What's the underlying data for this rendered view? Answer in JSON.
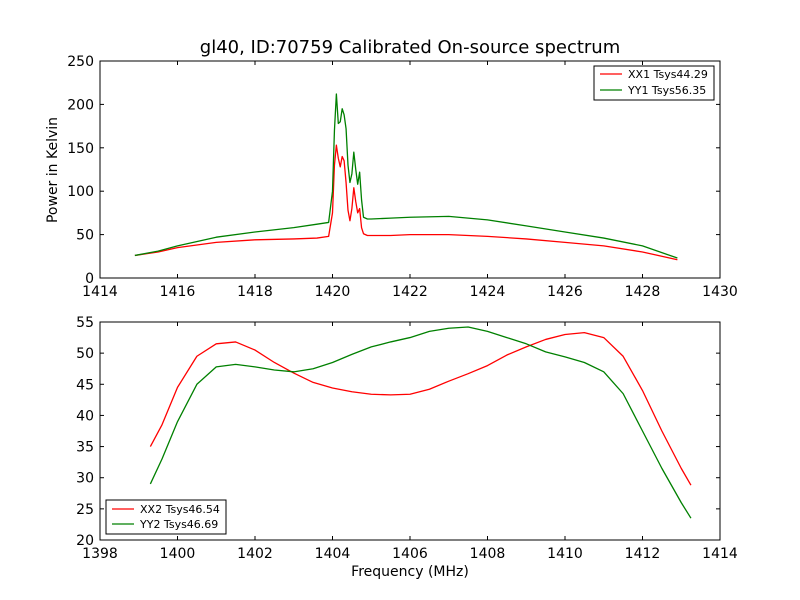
{
  "chart_data": [
    {
      "type": "line",
      "title": "gl40, ID:70759 Calibrated On-source spectrum",
      "xlabel": "",
      "ylabel": "Power in Kelvin",
      "xlim": [
        1414,
        1430
      ],
      "ylim": [
        0,
        250
      ],
      "xticks": [
        1414,
        1416,
        1418,
        1420,
        1422,
        1424,
        1426,
        1428,
        1430
      ],
      "yticks": [
        0,
        50,
        100,
        150,
        200,
        250
      ],
      "legend_position": "top-right",
      "grid": false,
      "series": [
        {
          "name": "XX1 Tsys44.29",
          "color": "#ff0000",
          "x": [
            1414.9,
            1415.5,
            1416.0,
            1417.0,
            1418.0,
            1419.0,
            1419.6,
            1419.9,
            1420.0,
            1420.05,
            1420.1,
            1420.15,
            1420.2,
            1420.25,
            1420.3,
            1420.35,
            1420.4,
            1420.45,
            1420.5,
            1420.55,
            1420.6,
            1420.65,
            1420.7,
            1420.75,
            1420.8,
            1420.9,
            1421.0,
            1421.5,
            1422.0,
            1423.0,
            1424.0,
            1425.0,
            1426.0,
            1427.0,
            1428.0,
            1428.9
          ],
          "y": [
            26,
            30,
            35,
            41,
            44,
            45,
            46,
            48,
            75,
            130,
            153,
            138,
            128,
            140,
            135,
            110,
            78,
            66,
            80,
            104,
            88,
            75,
            80,
            58,
            51,
            49,
            49,
            49,
            50,
            50,
            48,
            45,
            41,
            37,
            30,
            21
          ]
        },
        {
          "name": "YY1 Tsys56.35",
          "color": "#008000",
          "x": [
            1414.9,
            1415.5,
            1416.0,
            1417.0,
            1418.0,
            1419.0,
            1419.6,
            1419.9,
            1420.0,
            1420.05,
            1420.1,
            1420.15,
            1420.2,
            1420.25,
            1420.3,
            1420.35,
            1420.4,
            1420.45,
            1420.5,
            1420.55,
            1420.6,
            1420.65,
            1420.7,
            1420.75,
            1420.8,
            1420.9,
            1421.0,
            1421.5,
            1422.0,
            1423.0,
            1424.0,
            1425.0,
            1426.0,
            1427.0,
            1428.0,
            1428.9
          ],
          "y": [
            26,
            31,
            37,
            47,
            53,
            58,
            62,
            64,
            100,
            170,
            212,
            178,
            180,
            195,
            188,
            172,
            130,
            110,
            120,
            145,
            125,
            108,
            122,
            90,
            70,
            68,
            68,
            69,
            70,
            71,
            67,
            60,
            53,
            46,
            37,
            23
          ]
        }
      ]
    },
    {
      "type": "line",
      "title": "",
      "xlabel": "Frequency (MHz)",
      "ylabel": "",
      "xlim": [
        1398,
        1414
      ],
      "ylim": [
        20,
        55
      ],
      "xticks": [
        1398,
        1400,
        1402,
        1404,
        1406,
        1408,
        1410,
        1412,
        1414
      ],
      "yticks": [
        20,
        25,
        30,
        35,
        40,
        45,
        50,
        55
      ],
      "legend_position": "bottom-left",
      "grid": false,
      "series": [
        {
          "name": "XX2 Tsys46.54",
          "color": "#ff0000",
          "x": [
            1399.3,
            1399.6,
            1400.0,
            1400.5,
            1401.0,
            1401.5,
            1402.0,
            1402.5,
            1403.0,
            1403.5,
            1404.0,
            1404.5,
            1405.0,
            1405.5,
            1406.0,
            1406.5,
            1407.0,
            1407.5,
            1408.0,
            1408.5,
            1409.0,
            1409.5,
            1410.0,
            1410.5,
            1411.0,
            1411.5,
            1412.0,
            1412.5,
            1413.0,
            1413.25
          ],
          "y": [
            35,
            38.5,
            44.5,
            49.5,
            51.5,
            51.8,
            50.5,
            48.5,
            46.8,
            45.3,
            44.4,
            43.8,
            43.4,
            43.3,
            43.4,
            44.2,
            45.5,
            46.7,
            48,
            49.7,
            51,
            52.2,
            53,
            53.3,
            52.5,
            49.5,
            44,
            37.5,
            31.5,
            28.8
          ]
        },
        {
          "name": "YY2 Tsys46.69",
          "color": "#008000",
          "x": [
            1399.3,
            1399.6,
            1400.0,
            1400.5,
            1401.0,
            1401.5,
            1402.0,
            1402.5,
            1403.0,
            1403.5,
            1404.0,
            1404.5,
            1405.0,
            1405.5,
            1406.0,
            1406.5,
            1407.0,
            1407.5,
            1408.0,
            1408.5,
            1409.0,
            1409.5,
            1410.0,
            1410.5,
            1411.0,
            1411.5,
            1412.0,
            1412.5,
            1413.0,
            1413.25
          ],
          "y": [
            29,
            33,
            39,
            45,
            47.8,
            48.2,
            47.8,
            47.3,
            47,
            47.5,
            48.5,
            49.8,
            51,
            51.8,
            52.5,
            53.5,
            54,
            54.2,
            53.5,
            52.5,
            51.5,
            50.2,
            49.4,
            48.5,
            47,
            43.5,
            37.5,
            31.5,
            26,
            23.5
          ]
        }
      ]
    }
  ]
}
